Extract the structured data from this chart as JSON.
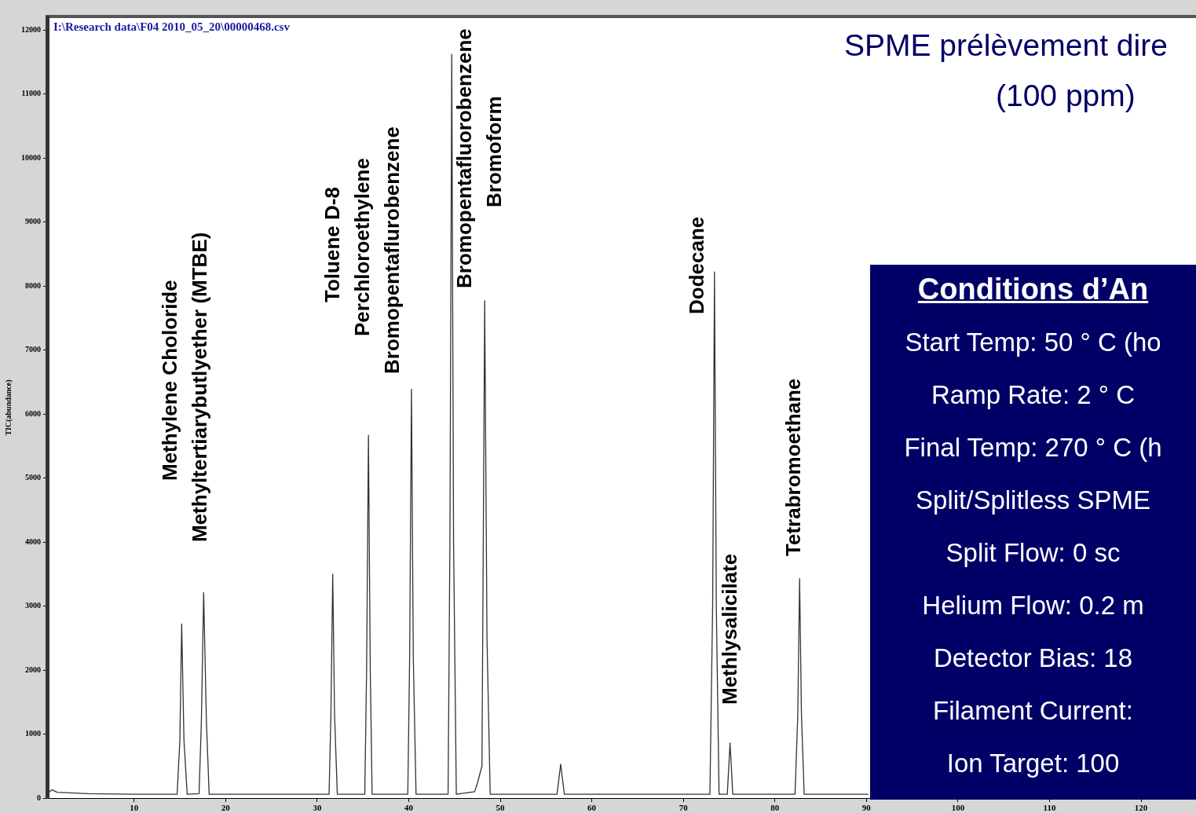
{
  "chart_data": [
    {
      "type": "line",
      "title": "SPME prélèvement dire",
      "subtitle": "(100 ppm)",
      "ylabel": "TIC(abundance)",
      "x": [
        0.5,
        1.0,
        1.6,
        5,
        10,
        14.7,
        15.0,
        15.2,
        15.45,
        15.8,
        17.1,
        17.35,
        17.6,
        17.9,
        18.2,
        25,
        31.3,
        31.5,
        31.7,
        31.9,
        32.2,
        35.2,
        35.4,
        35.6,
        35.8,
        36.0,
        39.9,
        40.1,
        40.3,
        40.5,
        40.8,
        44.3,
        44.5,
        44.7,
        44.9,
        45.2,
        47.2,
        47.5,
        48.0,
        48.3,
        48.55,
        48.9,
        56.2,
        56.6,
        57.0,
        72.9,
        73.2,
        73.4,
        73.6,
        73.9,
        74.8,
        75.1,
        75.4,
        82.2,
        82.5,
        82.7,
        82.9,
        83.2,
        90.2
      ],
      "series": [
        {
          "color": "#333333",
          "values": [
            60,
            130,
            90,
            70,
            60,
            60,
            900,
            2720,
            900,
            60,
            70,
            1200,
            3210,
            1200,
            60,
            60,
            60,
            1300,
            3500,
            1300,
            60,
            60,
            2000,
            5670,
            2000,
            60,
            60,
            2200,
            6390,
            2200,
            60,
            60,
            4000,
            11620,
            4000,
            60,
            100,
            230,
            500,
            7770,
            2500,
            60,
            60,
            530,
            60,
            60,
            3000,
            8220,
            3000,
            60,
            60,
            860,
            60,
            60,
            1300,
            3430,
            1300,
            60,
            60
          ]
        }
      ],
      "xlim": [
        0.5,
        126
      ],
      "xticks": [
        10,
        20,
        30,
        40,
        50,
        60,
        70,
        80,
        90,
        100,
        110,
        120
      ],
      "ylim": [
        0,
        12200
      ],
      "yticks": [
        0,
        1000,
        2000,
        3000,
        4000,
        5000,
        6000,
        7000,
        8000,
        9000,
        10000,
        11000,
        12000
      ],
      "grid": false,
      "legend": false,
      "marker": "none",
      "line_style": "solid",
      "annotations": [
        "I:\\Research data\\F04 2010_05_20\\00000468.csv",
        "Methylene Choloride",
        "Methyltertiarybutlyether (MTBE)",
        "Toluene D-8",
        "Perchloroethylene",
        "Bromopentaflurobenzene",
        "Bromopentafluorobenzene",
        "Bromoform",
        "Dodecane",
        "Methlysalicilate",
        "Tetrabromoethane"
      ]
    },
    {
      "type": "other",
      "title": "Conditions d’An",
      "annotations": [
        "Start Temp: 50 ° C (ho",
        "Ramp Rate: 2 ° C",
        "Final Temp: 270 ° C (h",
        "Split/Splitless SPME",
        "Split Flow: 0 sc",
        "Helium Flow: 0.2 m",
        "Detector Bias: 18",
        "Filament Current:",
        "Ion Target: 100"
      ]
    }
  ]
}
